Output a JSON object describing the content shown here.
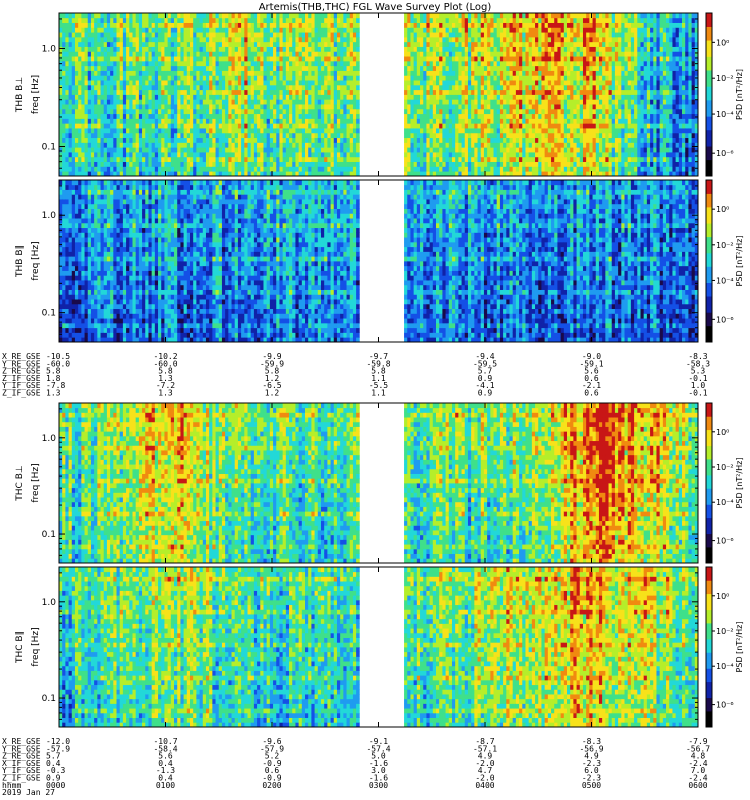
{
  "title": "Artemis(THB,THC) FGL Wave Survey Plot (Log)",
  "colors": {
    "colormap": [
      "#1a0a4a",
      "#1022a8",
      "#1450e6",
      "#1f9bf0",
      "#22d8d8",
      "#3fe08a",
      "#b5ee2a",
      "#f7e21a",
      "#f08a10",
      "#c81616"
    ],
    "bar_colormap": [
      "#000000",
      "#1a0a4a",
      "#1022a8",
      "#1450e6",
      "#1f9bf0",
      "#22d8d8",
      "#3fe08a",
      "#b5ee2a",
      "#f7e21a",
      "#f08a10",
      "#c81616"
    ]
  },
  "chart_data": [
    {
      "type": "heatmap",
      "ylabel": "freq [Hz]",
      "panel_label": "THB B⊥",
      "colorbar_label": "PSD [nT²/Hz]",
      "colorbar_ticks": [
        "10⁰",
        "10⁻²",
        "10⁻⁴",
        "10⁻⁶"
      ],
      "yticks": [
        "1.0",
        "0.1"
      ],
      "ylim": [
        0.05,
        2.3
      ],
      "yscale": "log",
      "zscale": "log",
      "zlim": [
        1e-07,
        10
      ],
      "data_gap": [
        "0250",
        "0315"
      ],
      "level_by_hhmm": [
        {
          "hhmm": "0000",
          "level": 0.45
        },
        {
          "hhmm": "0100",
          "level": 0.5
        },
        {
          "hhmm": "0145",
          "level": 0.62
        },
        {
          "hhmm": "0200",
          "level": 0.5
        },
        {
          "hhmm": "0315",
          "level": 0.55
        },
        {
          "hhmm": "0500",
          "level": 0.72
        },
        {
          "hhmm": "0530",
          "level": 0.4
        },
        {
          "hhmm": "0600",
          "level": 0.25
        }
      ]
    },
    {
      "type": "heatmap",
      "ylabel": "freq [Hz]",
      "panel_label": "THB B∥",
      "colorbar_label": "PSD [nT²/Hz]",
      "colorbar_ticks": [
        "10⁰",
        "10⁻²",
        "10⁻⁴",
        "10⁻⁶"
      ],
      "yticks": [
        "1.0",
        "0.1"
      ],
      "ylim": [
        0.05,
        2.3
      ],
      "yscale": "log",
      "zscale": "log",
      "zlim": [
        1e-07,
        10
      ],
      "data_gap": [
        "0250",
        "0315"
      ],
      "level_by_hhmm": [
        {
          "hhmm": "0000",
          "level": 0.3
        },
        {
          "hhmm": "0100",
          "level": 0.3
        },
        {
          "hhmm": "0200",
          "level": 0.32
        },
        {
          "hhmm": "0315",
          "level": 0.3
        },
        {
          "hhmm": "0500",
          "level": 0.3
        },
        {
          "hhmm": "0600",
          "level": 0.22
        }
      ]
    },
    {
      "type": "heatmap",
      "ylabel": "freq [Hz]",
      "panel_label": "THC B⊥",
      "colorbar_label": "PSD [nT²/Hz]",
      "colorbar_ticks": [
        "10⁰",
        "10⁻²",
        "10⁻⁴",
        "10⁻⁶"
      ],
      "yticks": [
        "1.0",
        "0.1"
      ],
      "ylim": [
        0.05,
        2.3
      ],
      "yscale": "log",
      "zscale": "log",
      "zlim": [
        1e-07,
        10
      ],
      "data_gap": [
        "0250",
        "0315"
      ],
      "level_by_hhmm": [
        {
          "hhmm": "0000",
          "level": 0.5
        },
        {
          "hhmm": "0030",
          "level": 0.55
        },
        {
          "hhmm": "0100",
          "level": 0.72
        },
        {
          "hhmm": "0130",
          "level": 0.58
        },
        {
          "hhmm": "0200",
          "level": 0.5
        },
        {
          "hhmm": "0315",
          "level": 0.5
        },
        {
          "hhmm": "0430",
          "level": 0.55
        },
        {
          "hhmm": "0500",
          "level": 0.85
        },
        {
          "hhmm": "0530",
          "level": 0.75
        },
        {
          "hhmm": "0600",
          "level": 0.55
        }
      ]
    },
    {
      "type": "heatmap",
      "ylabel": "freq [Hz]",
      "panel_label": "THC B∥",
      "colorbar_label": "PSD [nT²/Hz]",
      "colorbar_ticks": [
        "10⁰",
        "10⁻²",
        "10⁻⁴",
        "10⁻⁶"
      ],
      "yticks": [
        "1.0",
        "0.1"
      ],
      "ylim": [
        0.05,
        2.3
      ],
      "yscale": "log",
      "zscale": "log",
      "zlim": [
        1e-07,
        10
      ],
      "data_gap": [
        "0250",
        "0315"
      ],
      "level_by_hhmm": [
        {
          "hhmm": "0000",
          "level": 0.42
        },
        {
          "hhmm": "0100",
          "level": 0.58
        },
        {
          "hhmm": "0200",
          "level": 0.45
        },
        {
          "hhmm": "0315",
          "level": 0.45
        },
        {
          "hhmm": "0500",
          "level": 0.75
        },
        {
          "hhmm": "0530",
          "level": 0.65
        },
        {
          "hhmm": "0600",
          "level": 0.5
        }
      ]
    }
  ],
  "ephemeris_top": {
    "rows": [
      {
        "label": "X_RE_GSE",
        "values": [
          "-10.5",
          "-10.2",
          "-9.9",
          "-9.7",
          "-9.4",
          "-9.0",
          "-8.3"
        ]
      },
      {
        "label": "Y_RE_GSE",
        "values": [
          "-60.0",
          "-60.0",
          "-59.9",
          "-59.8",
          "-59.5",
          "-59.1",
          "-58.3"
        ]
      },
      {
        "label": "Z_RE_GSE",
        "values": [
          "5.8",
          "5.8",
          "5.8",
          "5.8",
          "5.7",
          "5.6",
          "5.3"
        ]
      },
      {
        "label": "Z_IF_GSE",
        "values": [
          "1.8",
          "1.3",
          "1.2",
          "1.1",
          "0.9",
          "0.6",
          "-0.1"
        ]
      },
      {
        "label": "Y_IF_GSE",
        "values": [
          "-7.8",
          "-7.2",
          "-6.5",
          "-5.5",
          "-4.1",
          "-2.1",
          "1.0"
        ]
      },
      {
        "label": "Z_IF_GSE",
        "values": [
          "1.3",
          "1.3",
          "1.2",
          "1.1",
          "0.9",
          "0.6",
          "-0.1"
        ]
      }
    ]
  },
  "ephemeris_bottom": {
    "rows": [
      {
        "label": "X_RE_GSE",
        "values": [
          "-12.0",
          "-10.7",
          "-9.6",
          "-9.1",
          "-8.7",
          "-8.3",
          "-7.9"
        ]
      },
      {
        "label": "Y_RE_GSE",
        "values": [
          "-57.9",
          "-58.4",
          "-57.9",
          "-57.4",
          "-57.1",
          "-56.9",
          "-56.7"
        ]
      },
      {
        "label": "Z_RE_GSE",
        "values": [
          "5.7",
          "5.6",
          "5.2",
          "5.0",
          "4.9",
          "4.9",
          "4.8"
        ]
      },
      {
        "label": "X_IF_GSE",
        "values": [
          "0.4",
          "0.4",
          "-0.9",
          "-1.6",
          "-2.0",
          "-2.3",
          "-2.4"
        ]
      },
      {
        "label": "Y_IF_GSE",
        "values": [
          "-0.3",
          "-1.3",
          "0.6",
          "3.0",
          "4.7",
          "6.0",
          "7.0"
        ]
      },
      {
        "label": "Z_IF_GSE",
        "values": [
          "0.9",
          "0.4",
          "-0.9",
          "-1.6",
          "-2.0",
          "-2.3",
          "-2.4"
        ]
      },
      {
        "label": "hhmm",
        "values": [
          "0000",
          "0100",
          "0200",
          "0300",
          "0400",
          "0500",
          "0600"
        ]
      }
    ],
    "date": "2019 Jan 27"
  }
}
